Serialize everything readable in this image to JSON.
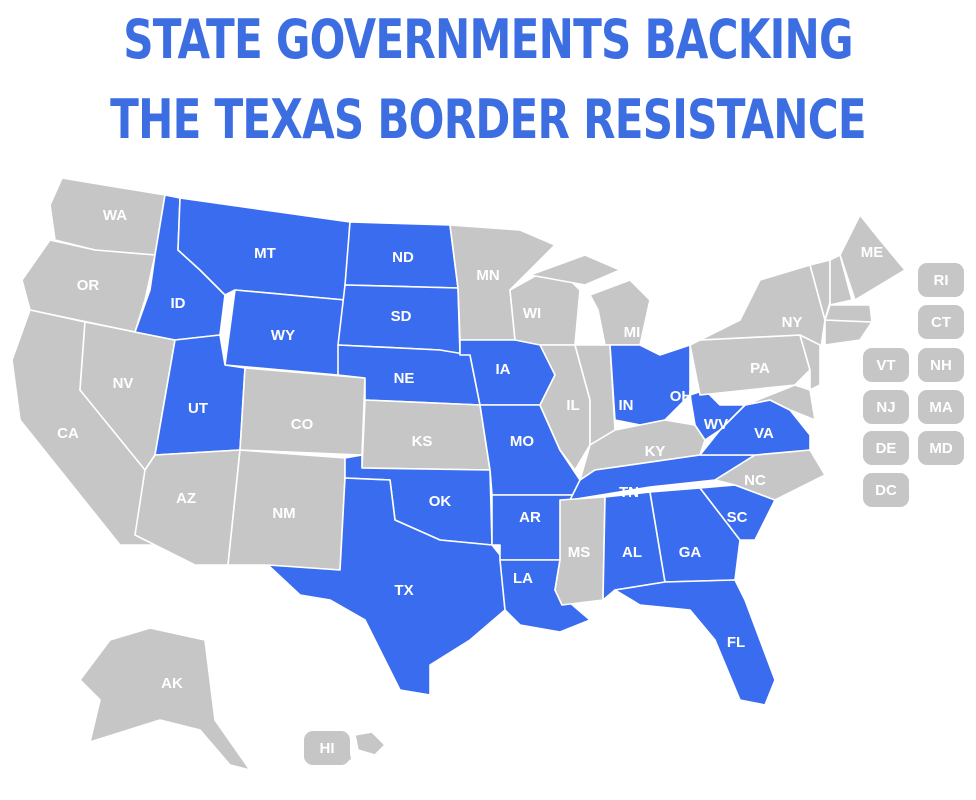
{
  "title": {
    "line1": "STATE GOVERNMENTS BACKING",
    "line2": "THE TEXAS BORDER RESISTANCE"
  },
  "colors": {
    "supporting": "#3a6cf0",
    "not_supporting": "#c6c6c6",
    "title": "#3c6ee2",
    "label": "#ffffff"
  },
  "states": [
    {
      "abbr": "WA",
      "supporting": false
    },
    {
      "abbr": "OR",
      "supporting": false
    },
    {
      "abbr": "CA",
      "supporting": false
    },
    {
      "abbr": "NV",
      "supporting": false
    },
    {
      "abbr": "ID",
      "supporting": true
    },
    {
      "abbr": "MT",
      "supporting": true
    },
    {
      "abbr": "WY",
      "supporting": true
    },
    {
      "abbr": "UT",
      "supporting": true
    },
    {
      "abbr": "CO",
      "supporting": false
    },
    {
      "abbr": "AZ",
      "supporting": false
    },
    {
      "abbr": "NM",
      "supporting": false
    },
    {
      "abbr": "ND",
      "supporting": true
    },
    {
      "abbr": "SD",
      "supporting": true
    },
    {
      "abbr": "NE",
      "supporting": true
    },
    {
      "abbr": "KS",
      "supporting": false
    },
    {
      "abbr": "OK",
      "supporting": true
    },
    {
      "abbr": "TX",
      "supporting": true
    },
    {
      "abbr": "MN",
      "supporting": false
    },
    {
      "abbr": "IA",
      "supporting": true
    },
    {
      "abbr": "MO",
      "supporting": true
    },
    {
      "abbr": "AR",
      "supporting": true
    },
    {
      "abbr": "LA",
      "supporting": true
    },
    {
      "abbr": "WI",
      "supporting": false
    },
    {
      "abbr": "IL",
      "supporting": false
    },
    {
      "abbr": "MI",
      "supporting": false
    },
    {
      "abbr": "IN",
      "supporting": false
    },
    {
      "abbr": "OH",
      "supporting": true
    },
    {
      "abbr": "KY",
      "supporting": false
    },
    {
      "abbr": "TN",
      "supporting": true
    },
    {
      "abbr": "MS",
      "supporting": false
    },
    {
      "abbr": "AL",
      "supporting": true
    },
    {
      "abbr": "GA",
      "supporting": true
    },
    {
      "abbr": "FL",
      "supporting": true
    },
    {
      "abbr": "SC",
      "supporting": true
    },
    {
      "abbr": "NC",
      "supporting": false
    },
    {
      "abbr": "VA",
      "supporting": true
    },
    {
      "abbr": "WV",
      "supporting": true
    },
    {
      "abbr": "PA",
      "supporting": false
    },
    {
      "abbr": "NY",
      "supporting": false
    },
    {
      "abbr": "ME",
      "supporting": false
    },
    {
      "abbr": "AK",
      "supporting": false
    },
    {
      "abbr": "HI",
      "supporting": false
    },
    {
      "abbr": "RI",
      "supporting": false
    },
    {
      "abbr": "CT",
      "supporting": false
    },
    {
      "abbr": "VT",
      "supporting": false
    },
    {
      "abbr": "NH",
      "supporting": false
    },
    {
      "abbr": "NJ",
      "supporting": false
    },
    {
      "abbr": "MA",
      "supporting": false
    },
    {
      "abbr": "DE",
      "supporting": false
    },
    {
      "abbr": "MD",
      "supporting": false
    },
    {
      "abbr": "DC",
      "supporting": false
    }
  ]
}
